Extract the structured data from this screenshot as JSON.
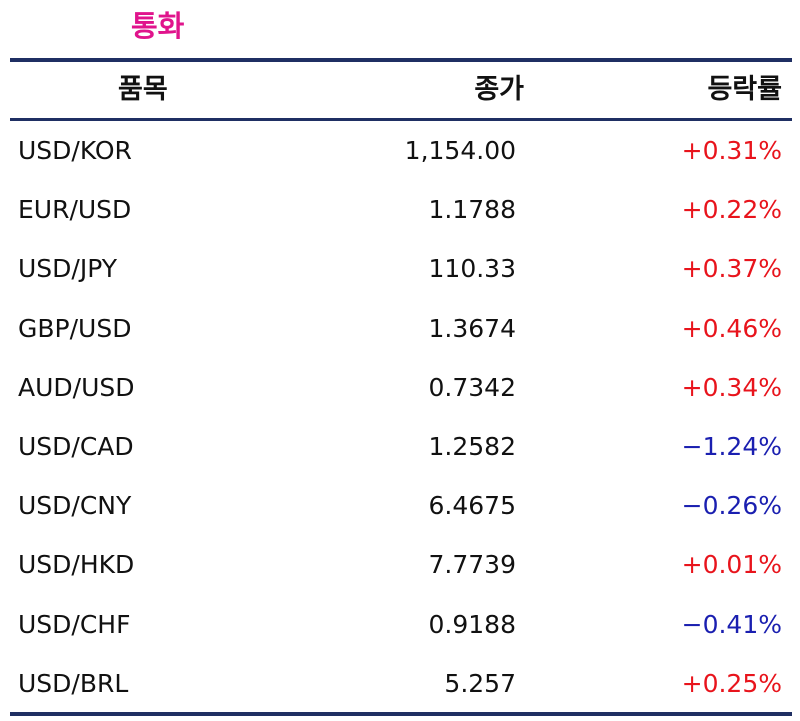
{
  "title": "통화",
  "headers": {
    "item": "품목",
    "close": "종가",
    "change": "등락률"
  },
  "colors": {
    "title": "#e0148c",
    "rule": "#1f2f63",
    "up": "#e8141c",
    "down": "#1a1fb0"
  },
  "rows": [
    {
      "item": "USD/KOR",
      "close": "1,154.00",
      "change": "+0.31%",
      "dir": "up"
    },
    {
      "item": "EUR/USD",
      "close": "1.1788",
      "change": "+0.22%",
      "dir": "up"
    },
    {
      "item": "USD/JPY",
      "close": "110.33",
      "change": "+0.37%",
      "dir": "up"
    },
    {
      "item": "GBP/USD",
      "close": "1.3674",
      "change": "+0.46%",
      "dir": "up"
    },
    {
      "item": "AUD/USD",
      "close": "0.7342",
      "change": "+0.34%",
      "dir": "up"
    },
    {
      "item": "USD/CAD",
      "close": "1.2582",
      "change": "−1.24%",
      "dir": "down"
    },
    {
      "item": "USD/CNY",
      "close": "6.4675",
      "change": "−0.26%",
      "dir": "down"
    },
    {
      "item": "USD/HKD",
      "close": "7.7739",
      "change": "+0.01%",
      "dir": "up"
    },
    {
      "item": "USD/CHF",
      "close": "0.9188",
      "change": "−0.41%",
      "dir": "down"
    },
    {
      "item": "USD/BRL",
      "close": "5.257",
      "change": "+0.25%",
      "dir": "up"
    }
  ]
}
